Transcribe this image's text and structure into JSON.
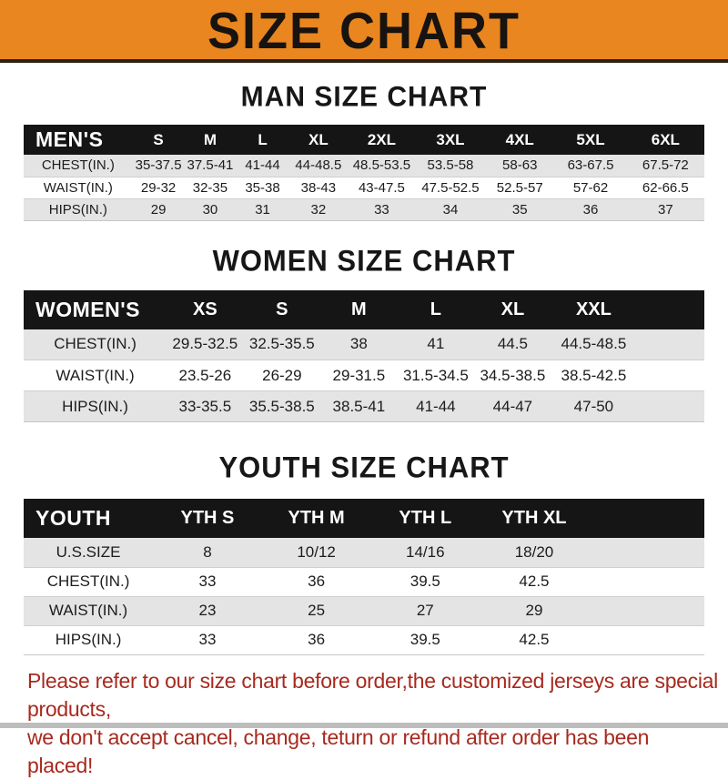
{
  "banner": {
    "title": "SIZE CHART",
    "bg_color": "#e9861f",
    "text_color": "#171310"
  },
  "colors": {
    "table_header_bg": "#151515",
    "table_header_text": "#ffffff",
    "row_alt_bg": "#e4e4e4",
    "note_text": "#a8291e"
  },
  "sections": [
    {
      "title": "MAN SIZE CHART",
      "corner_label": "MEN'S",
      "columns": [
        "S",
        "M",
        "L",
        "XL",
        "2XL",
        "3XL",
        "4XL",
        "5XL",
        "6XL"
      ],
      "rows": [
        {
          "label": "CHEST(IN.)",
          "values": [
            "35-37.5",
            "37.5-41",
            "41-44",
            "44-48.5",
            "48.5-53.5",
            "53.5-58",
            "58-63",
            "63-67.5",
            "67.5-72"
          ]
        },
        {
          "label": "WAIST(IN.)",
          "values": [
            "29-32",
            "32-35",
            "35-38",
            "38-43",
            "43-47.5",
            "47.5-52.5",
            "52.5-57",
            "57-62",
            "62-66.5"
          ]
        },
        {
          "label": "HIPS(IN.)",
          "values": [
            "29",
            "30",
            "31",
            "32",
            "33",
            "34",
            "35",
            "36",
            "37"
          ]
        }
      ]
    },
    {
      "title": "WOMEN SIZE CHART",
      "corner_label": "WOMEN'S",
      "columns": [
        "XS",
        "S",
        "M",
        "L",
        "XL",
        "XXL"
      ],
      "rows": [
        {
          "label": "CHEST(IN.)",
          "values": [
            "29.5-32.5",
            "32.5-35.5",
            "38",
            "41",
            "44.5",
            "44.5-48.5"
          ]
        },
        {
          "label": "WAIST(IN.)",
          "values": [
            "23.5-26",
            "26-29",
            "29-31.5",
            "31.5-34.5",
            "34.5-38.5",
            "38.5-42.5"
          ]
        },
        {
          "label": "HIPS(IN.)",
          "values": [
            "33-35.5",
            "35.5-38.5",
            "38.5-41",
            "41-44",
            "44-47",
            "47-50"
          ]
        }
      ]
    },
    {
      "title": "YOUTH SIZE CHART",
      "corner_label": "YOUTH",
      "columns": [
        "YTH S",
        "YTH M",
        "YTH L",
        "YTH XL"
      ],
      "rows": [
        {
          "label": "U.S.SIZE",
          "values": [
            "8",
            "10/12",
            "14/16",
            "18/20"
          ]
        },
        {
          "label": "CHEST(IN.)",
          "values": [
            "33",
            "36",
            "39.5",
            "42.5"
          ]
        },
        {
          "label": "WAIST(IN.)",
          "values": [
            "23",
            "25",
            "27",
            "29"
          ]
        },
        {
          "label": "HIPS(IN.)",
          "values": [
            "33",
            "36",
            "39.5",
            "42.5"
          ]
        }
      ]
    }
  ],
  "footer": {
    "line1": "Please refer to our size chart before order,the customized jerseys are special products,",
    "line2": "we don't accept cancel, change, teturn or refund after order has been placed!"
  }
}
